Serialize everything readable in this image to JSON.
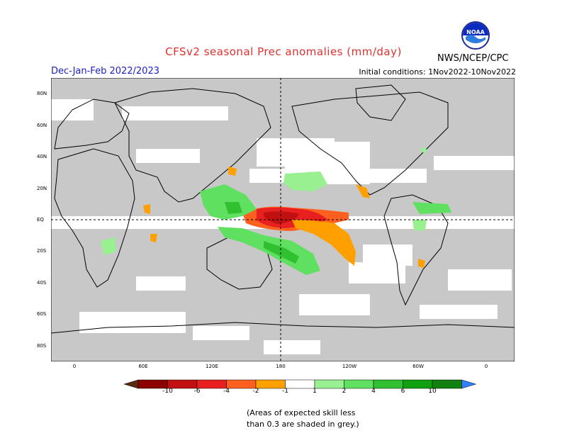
{
  "title": "CFSv2 seasonal Prec anomalies (mm/day)",
  "period": "Dec-Jan-Feb 2022/2023",
  "initial_conditions": "Initial conditions: 1Nov2022-10Nov2022",
  "org": "NWS/NCEP/CPC",
  "logo_text": "NOAA",
  "lat_labels": [
    "80N",
    "60N",
    "40N",
    "20N",
    "EQ",
    "20S",
    "40S",
    "60S",
    "80S"
  ],
  "lon_labels": [
    "0",
    "60E",
    "120E",
    "180",
    "120W",
    "60W",
    "0"
  ],
  "legend": {
    "ticks": [
      "-10",
      "-6",
      "-4",
      "-2",
      "-1",
      "1",
      "2",
      "4",
      "6",
      "10"
    ],
    "colors": [
      "#5a2a10",
      "#8b0000",
      "#c01010",
      "#e82020",
      "#ff6020",
      "#ffa000",
      "#ffffff",
      "#98f090",
      "#60e060",
      "#30c030",
      "#10a010",
      "#108010",
      "#3080ff"
    ]
  },
  "note_line1": "(Areas of expected skill less",
  "note_line2": "than 0.3 are shaded in grey.)"
}
